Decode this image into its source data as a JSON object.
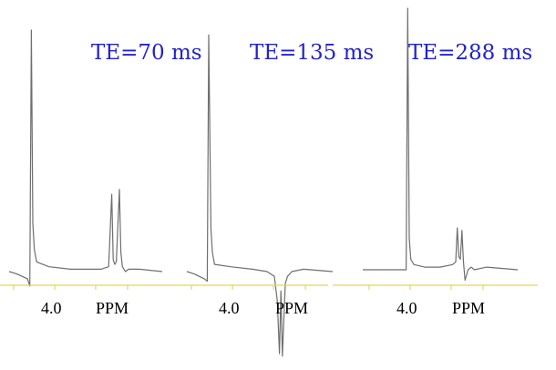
{
  "chart_data": [
    {
      "type": "line",
      "title": "TE=70 ms",
      "xlabel": "PPM",
      "tick_labels": [
        "4.0",
        "PPM"
      ],
      "colors": {
        "trace": "#6e6e6e",
        "axis": "#e8d84a",
        "title": "#2323c8"
      },
      "series": [
        {
          "x": [
            0,
            0.05,
            0.12,
            0.135,
            0.145,
            0.155,
            0.165,
            0.18,
            0.26,
            0.4,
            0.52,
            0.6,
            0.65,
            0.67,
            0.68,
            0.69,
            0.7,
            0.72,
            0.73,
            0.74,
            0.75,
            0.76,
            0.78,
            0.85,
            1
          ],
          "y": [
            0,
            -0.01,
            -0.03,
            -0.06,
            1.0,
            0.2,
            0.09,
            0.04,
            0.02,
            0.01,
            0.01,
            0.01,
            0.02,
            0.32,
            0.05,
            0.03,
            0.04,
            0.34,
            0.08,
            0.02,
            0.01,
            0.0,
            0.01,
            0.01,
            0.0
          ]
        }
      ]
    },
    {
      "type": "line",
      "title": "TE=135 ms",
      "xlabel": "PPM",
      "tick_labels": [
        "4.0",
        "PPM"
      ],
      "colors": {
        "trace": "#6e6e6e",
        "axis": "#e8d84a",
        "title": "#2323c8"
      },
      "series": [
        {
          "x": [
            0,
            0.05,
            0.12,
            0.14,
            0.15,
            0.165,
            0.175,
            0.19,
            0.3,
            0.45,
            0.55,
            0.6,
            0.62,
            0.635,
            0.645,
            0.655,
            0.665,
            0.675,
            0.69,
            0.72,
            0.8,
            1
          ],
          "y": [
            0,
            -0.01,
            -0.03,
            -0.04,
            0.98,
            0.18,
            0.08,
            0.03,
            0.02,
            0.01,
            0.0,
            -0.02,
            -0.12,
            -0.34,
            -0.08,
            -0.35,
            -0.2,
            -0.05,
            -0.02,
            0.0,
            0.01,
            0.0
          ]
        }
      ]
    },
    {
      "type": "line",
      "title": "TE=288 ms",
      "xlabel": "PPM",
      "tick_labels": [
        "4.0",
        "PPM"
      ],
      "colors": {
        "trace": "#6e6e6e",
        "axis": "#e8d84a",
        "title": "#2323c8"
      },
      "series": [
        {
          "x": [
            0,
            0.05,
            0.15,
            0.25,
            0.28,
            0.29,
            0.3,
            0.31,
            0.33,
            0.4,
            0.5,
            0.58,
            0.6,
            0.61,
            0.62,
            0.63,
            0.64,
            0.65,
            0.66,
            0.68,
            0.7,
            0.72,
            0.8,
            1
          ],
          "y": [
            0,
            0.0,
            0.0,
            0.0,
            0.0,
            1.0,
            0.12,
            0.04,
            0.02,
            0.01,
            0.01,
            0.02,
            0.03,
            0.16,
            0.05,
            0.04,
            0.15,
            0.03,
            -0.04,
            0.0,
            0.01,
            0.0,
            0.01,
            0.0
          ]
        }
      ]
    }
  ]
}
